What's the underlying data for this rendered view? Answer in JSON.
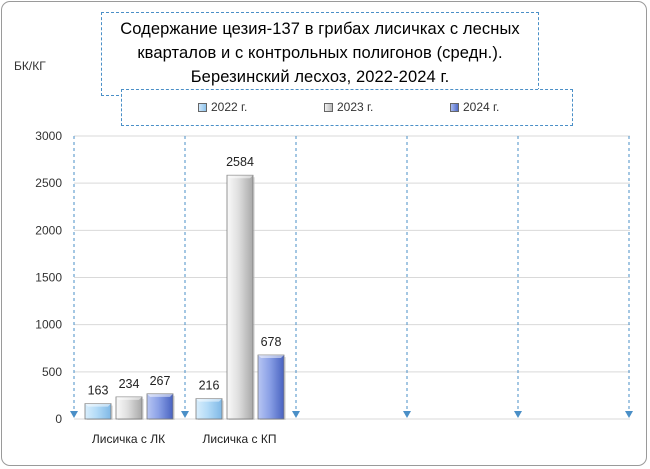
{
  "chart_data": {
    "type": "bar",
    "title_lines": [
      "Содержание цезия-137 в грибах лисичках с лесных",
      "кварталов и с контрольных полигонов (средн.).",
      "Березинский лесхоз, 2022-2024 г."
    ],
    "ylabel": "БК/КГ",
    "categories": [
      "Лисичка с ЛК",
      "Лисичка с КП"
    ],
    "series": [
      {
        "name": "2022 г.",
        "values": [
          163,
          216
        ],
        "color": "#9fcff2"
      },
      {
        "name": "2023 г.",
        "values": [
          234,
          2584
        ],
        "color": "#d4d4d4"
      },
      {
        "name": "2024 г.",
        "values": [
          267,
          678
        ],
        "color": "#6f8ce0"
      }
    ],
    "ylim": [
      0,
      3000
    ],
    "yticks": [
      "0",
      "500",
      "1000",
      "1500",
      "2000",
      "2500",
      "3000"
    ],
    "grid": "horizontal",
    "legend_position": "top"
  }
}
